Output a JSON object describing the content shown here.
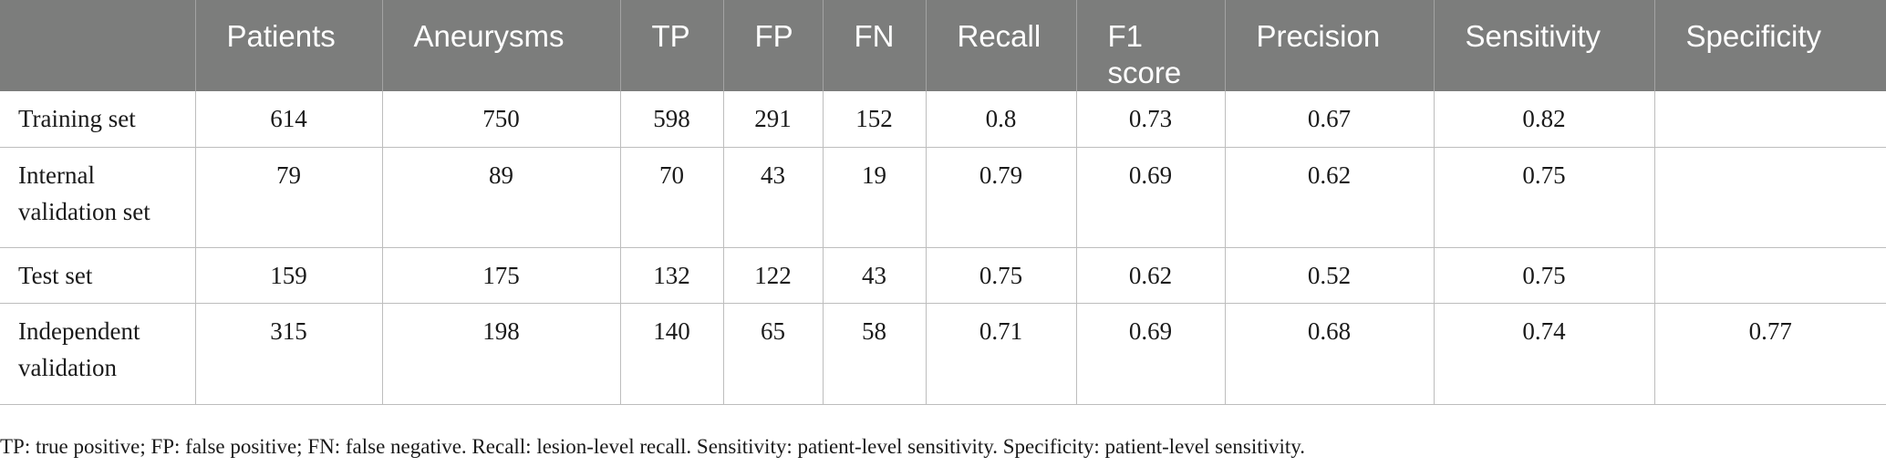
{
  "table": {
    "headers": [
      "",
      "Patients",
      "Aneurysms",
      "TP",
      "FP",
      "FN",
      "Recall",
      "F1\nscore",
      "Precision",
      "Sensitivity",
      "Specificity"
    ],
    "rows": [
      [
        "Training set",
        "614",
        "750",
        "598",
        "291",
        "152",
        "0.8",
        "0.73",
        "0.67",
        "0.82",
        ""
      ],
      [
        "Internal validation set",
        "79",
        "89",
        "70",
        "43",
        "19",
        "0.79",
        "0.69",
        "0.62",
        "0.75",
        ""
      ],
      [
        "Test set",
        "159",
        "175",
        "132",
        "122",
        "43",
        "0.75",
        "0.62",
        "0.52",
        "0.75",
        ""
      ],
      [
        "Independent validation",
        "315",
        "198",
        "140",
        "65",
        "58",
        "0.71",
        "0.69",
        "0.68",
        "0.74",
        "0.77"
      ]
    ]
  },
  "footnote": "TP: true positive; FP: false positive; FN: false negative. Recall: lesion-level recall. Sensitivity: patient-level sensitivity. Specificity: patient-level sensitivity."
}
